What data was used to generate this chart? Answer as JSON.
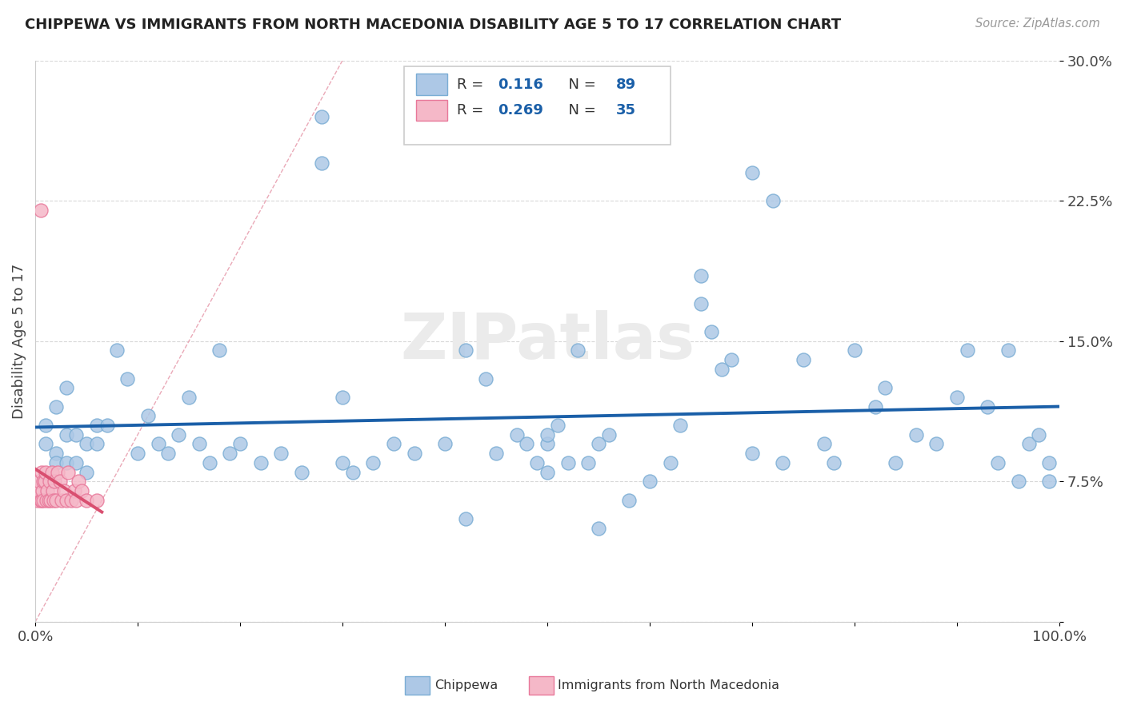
{
  "title": "CHIPPEWA VS IMMIGRANTS FROM NORTH MACEDONIA DISABILITY AGE 5 TO 17 CORRELATION CHART",
  "source": "Source: ZipAtlas.com",
  "ylabel": "Disability Age 5 to 17",
  "xlim": [
    0,
    1.0
  ],
  "ylim": [
    0,
    0.3
  ],
  "xticks": [
    0.0,
    0.1,
    0.2,
    0.3,
    0.4,
    0.5,
    0.6,
    0.7,
    0.8,
    0.9,
    1.0
  ],
  "xticklabels": [
    "0.0%",
    "",
    "",
    "",
    "",
    "",
    "",
    "",
    "",
    "",
    "100.0%"
  ],
  "yticks": [
    0.0,
    0.075,
    0.15,
    0.225,
    0.3
  ],
  "yticklabels": [
    "",
    "7.5%",
    "15.0%",
    "22.5%",
    "30.0%"
  ],
  "chippewa_color": "#adc8e6",
  "chippewa_edge": "#7aadd4",
  "macedonia_color": "#f5b8c8",
  "macedonia_edge": "#e8789a",
  "trend_chippewa_color": "#1a5fa8",
  "trend_macedonia_color": "#d94f70",
  "ref_line_color": "#e8a0b0",
  "legend_color": "#1a5fa8",
  "legend_r1_val": "0.116",
  "legend_n1_val": "89",
  "legend_r2_val": "0.269",
  "legend_n2_val": "35",
  "watermark_text": "ZIPatlas",
  "background_color": "#ffffff",
  "chippewa_x": [
    0.01,
    0.01,
    0.02,
    0.02,
    0.02,
    0.03,
    0.03,
    0.03,
    0.04,
    0.04,
    0.05,
    0.05,
    0.06,
    0.06,
    0.07,
    0.08,
    0.09,
    0.1,
    0.11,
    0.12,
    0.13,
    0.14,
    0.15,
    0.16,
    0.17,
    0.18,
    0.19,
    0.2,
    0.22,
    0.24,
    0.26,
    0.28,
    0.28,
    0.3,
    0.31,
    0.33,
    0.35,
    0.37,
    0.4,
    0.42,
    0.44,
    0.45,
    0.47,
    0.49,
    0.5,
    0.5,
    0.51,
    0.52,
    0.53,
    0.54,
    0.55,
    0.56,
    0.58,
    0.6,
    0.62,
    0.63,
    0.65,
    0.65,
    0.66,
    0.68,
    0.7,
    0.72,
    0.73,
    0.75,
    0.77,
    0.78,
    0.8,
    0.82,
    0.84,
    0.86,
    0.88,
    0.9,
    0.91,
    0.93,
    0.94,
    0.95,
    0.96,
    0.97,
    0.98,
    0.99,
    0.99,
    0.5,
    0.3,
    0.67,
    0.7,
    0.83,
    0.48,
    0.42,
    0.55
  ],
  "chippewa_y": [
    0.105,
    0.095,
    0.09,
    0.085,
    0.115,
    0.1,
    0.085,
    0.125,
    0.1,
    0.085,
    0.095,
    0.08,
    0.105,
    0.095,
    0.105,
    0.145,
    0.13,
    0.09,
    0.11,
    0.095,
    0.09,
    0.1,
    0.12,
    0.095,
    0.085,
    0.145,
    0.09,
    0.095,
    0.085,
    0.09,
    0.08,
    0.27,
    0.245,
    0.12,
    0.08,
    0.085,
    0.095,
    0.09,
    0.095,
    0.145,
    0.13,
    0.09,
    0.1,
    0.085,
    0.095,
    0.08,
    0.105,
    0.085,
    0.145,
    0.085,
    0.095,
    0.1,
    0.065,
    0.075,
    0.085,
    0.105,
    0.185,
    0.17,
    0.155,
    0.14,
    0.24,
    0.225,
    0.085,
    0.14,
    0.095,
    0.085,
    0.145,
    0.115,
    0.085,
    0.1,
    0.095,
    0.12,
    0.145,
    0.115,
    0.085,
    0.145,
    0.075,
    0.095,
    0.1,
    0.085,
    0.075,
    0.1,
    0.085,
    0.135,
    0.09,
    0.125,
    0.095,
    0.055,
    0.05
  ],
  "macedonia_x": [
    0.002,
    0.003,
    0.004,
    0.005,
    0.006,
    0.006,
    0.007,
    0.008,
    0.008,
    0.009,
    0.01,
    0.011,
    0.012,
    0.013,
    0.014,
    0.015,
    0.016,
    0.017,
    0.018,
    0.019,
    0.02,
    0.022,
    0.024,
    0.026,
    0.028,
    0.03,
    0.032,
    0.035,
    0.038,
    0.04,
    0.042,
    0.045,
    0.05,
    0.06,
    0.005
  ],
  "macedonia_y": [
    0.065,
    0.07,
    0.075,
    0.065,
    0.08,
    0.065,
    0.07,
    0.075,
    0.065,
    0.075,
    0.08,
    0.065,
    0.07,
    0.065,
    0.075,
    0.065,
    0.08,
    0.07,
    0.065,
    0.075,
    0.065,
    0.08,
    0.075,
    0.065,
    0.07,
    0.065,
    0.08,
    0.065,
    0.07,
    0.065,
    0.075,
    0.07,
    0.065,
    0.065,
    0.22
  ]
}
